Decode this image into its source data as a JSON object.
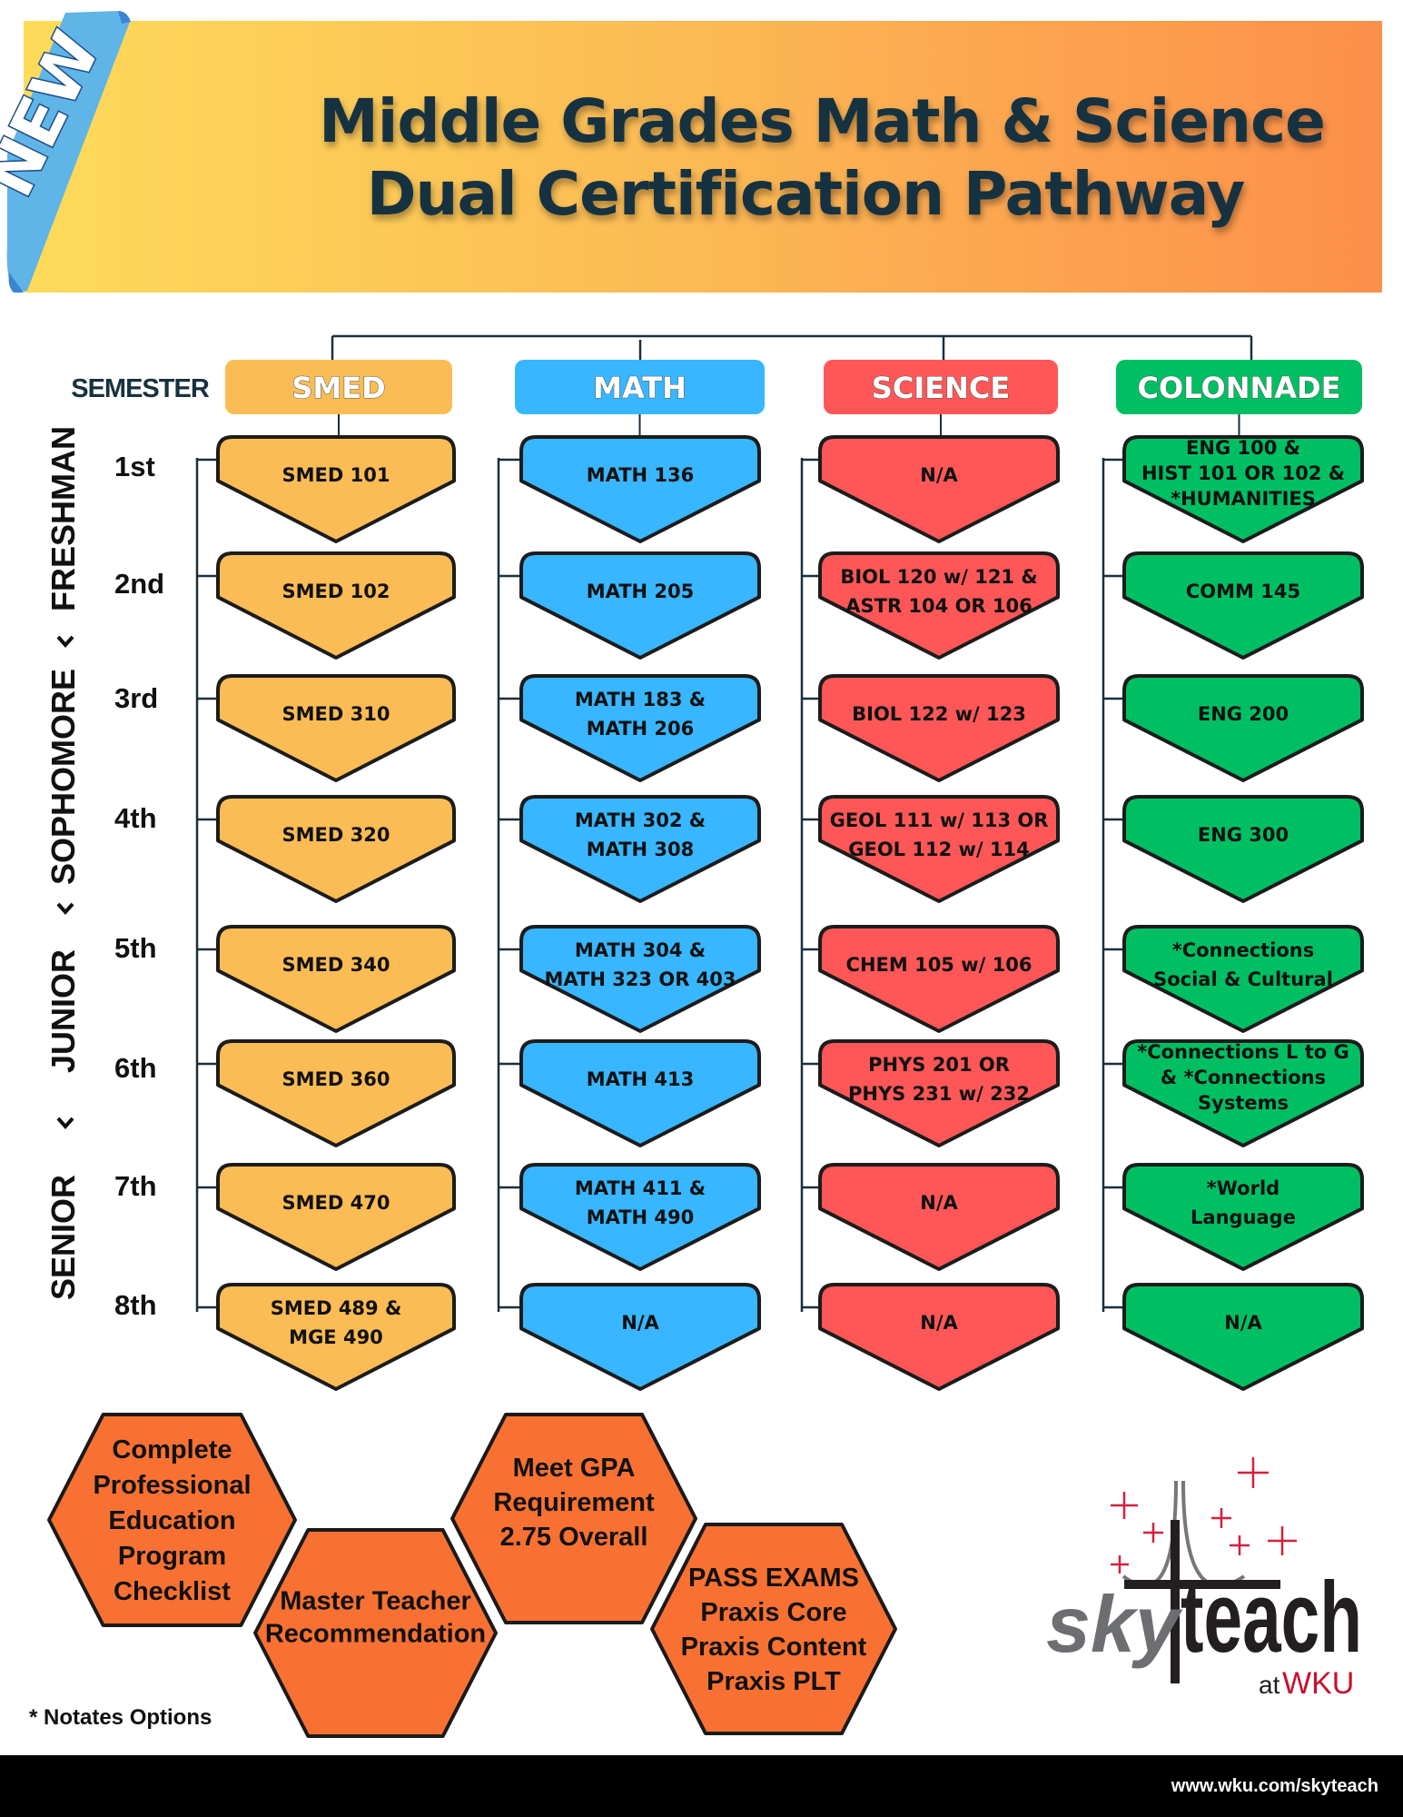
{
  "banner": {
    "badge": "NEW",
    "title_line1": "Middle Grades Math & Science",
    "title_line2": "Dual Certification Pathway"
  },
  "colors": {
    "smed": "#fbbc55",
    "math": "#38b6ff",
    "science": "#ff5757",
    "colonnade": "#00bf63",
    "hexagon": "#f97132",
    "title": "#17313f",
    "ribbon": "#5fb4e8"
  },
  "semester_label": "SEMESTER",
  "columns": [
    {
      "key": "smed",
      "header": "SMED",
      "courses": [
        [
          "SMED 101"
        ],
        [
          "SMED 102"
        ],
        [
          "SMED 310"
        ],
        [
          "SMED 320"
        ],
        [
          "SMED 340"
        ],
        [
          "SMED 360"
        ],
        [
          "SMED 470"
        ],
        [
          "SMED 489 &",
          "MGE 490"
        ]
      ]
    },
    {
      "key": "math",
      "header": "MATH",
      "courses": [
        [
          "MATH 136"
        ],
        [
          "MATH 205"
        ],
        [
          "MATH 183 &",
          "MATH 206"
        ],
        [
          "MATH 302 &",
          "MATH 308"
        ],
        [
          "MATH 304 &",
          "MATH 323 OR 403"
        ],
        [
          "MATH 413"
        ],
        [
          "MATH 411 &",
          "MATH 490"
        ],
        [
          "N/A"
        ]
      ]
    },
    {
      "key": "science",
      "header": "SCIENCE",
      "courses": [
        [
          "N/A"
        ],
        [
          "BIOL 120 w/ 121 &",
          "ASTR 104 OR 106"
        ],
        [
          "BIOL 122 w/ 123"
        ],
        [
          "GEOL 111 w/ 113 OR",
          "GEOL 112 w/ 114"
        ],
        [
          "CHEM 105 w/ 106"
        ],
        [
          "PHYS 201 OR",
          "PHYS 231 w/ 232"
        ],
        [
          "N/A"
        ],
        [
          "N/A"
        ]
      ]
    },
    {
      "key": "colonnade",
      "header": "COLONNADE",
      "courses": [
        [
          "ENG 100 &",
          "HIST 101 OR 102 &",
          "*HUMANITIES"
        ],
        [
          "COMM 145"
        ],
        [
          "ENG 200"
        ],
        [
          "ENG 300"
        ],
        [
          "*Connections",
          "Social & Cultural"
        ],
        [
          "*Connections L to G",
          "& *Connections",
          "Systems"
        ],
        [
          "*World",
          "Language"
        ],
        [
          "N/A"
        ]
      ]
    }
  ],
  "semesters": [
    "1st",
    "2nd",
    "3rd",
    "4th",
    "5th",
    "6th",
    "7th",
    "8th"
  ],
  "years": [
    "FRESHMAN",
    "SOPHOMORE",
    "JUNIOR",
    "SENIOR"
  ],
  "requirements": [
    {
      "lines": [
        "Complete",
        "Professional",
        "Education",
        "Program",
        "Checklist"
      ]
    },
    {
      "lines": [
        "Master Teacher",
        "Recommendation"
      ]
    },
    {
      "lines": [
        "Meet GPA",
        "Requirement",
        "2.75 Overall"
      ]
    },
    {
      "lines": [
        "PASS EXAMS",
        "Praxis Core",
        "Praxis Content",
        "Praxis PLT"
      ]
    }
  ],
  "footnote": "* Notates Options",
  "logo": {
    "sky": "sky",
    "teach": "teach",
    "at": "at",
    "wku": "WKU"
  },
  "footer": {
    "url": "www.wku.com/skyteach"
  }
}
